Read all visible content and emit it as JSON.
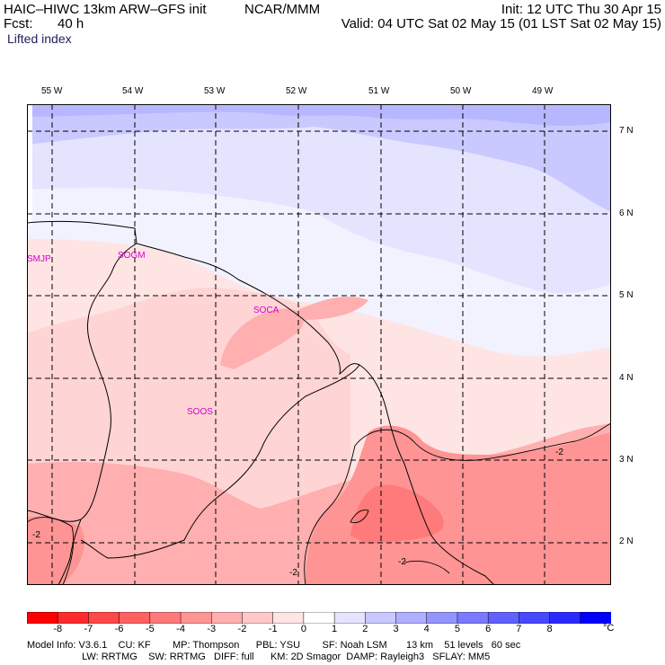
{
  "header": {
    "title": "HAIC–HIWC 13km ARW–GFS init",
    "org": "NCAR/MMM",
    "fcst_label": "Fcst:",
    "fcst_value": "40 h",
    "init": "Init: 12 UTC Thu 30 Apr 15",
    "valid": "Valid: 04 UTC Sat 02 May 15 (01 LST Sat 02 May 15)",
    "field": "Lifted index"
  },
  "map": {
    "lon_labels": [
      "55 W",
      "54 W",
      "53 W",
      "52 W",
      "51 W",
      "50 W",
      "49 W"
    ],
    "lat_labels": [
      "7 N",
      "6 N",
      "5 N",
      "4 N",
      "3 N",
      "2 N"
    ],
    "stations": [
      "SMJP",
      "SOGM",
      "SOCA",
      "SOOS"
    ],
    "contour_labels": [
      "-2",
      "-2",
      "-2",
      "-2"
    ]
  },
  "colorbar": {
    "labels": [
      "-8",
      "-7",
      "-6",
      "-5",
      "-4",
      "-3",
      "-2",
      "-1",
      "0",
      "1",
      "2",
      "3",
      "4",
      "5",
      "6",
      "7",
      "8"
    ],
    "unit": "°C",
    "colors": [
      "#ff0000",
      "#ff2a2a",
      "#ff4848",
      "#ff6161",
      "#ff7a7a",
      "#ff9494",
      "#ffafaf",
      "#ffc9c9",
      "#ffe4e4",
      "#ffffff",
      "#e4e4ff",
      "#c9c9ff",
      "#afafff",
      "#9494ff",
      "#7a7aff",
      "#6161ff",
      "#4848ff",
      "#2a2aff",
      "#0000ff"
    ]
  },
  "footer": {
    "line1": "Model Info: V3.6.1    CU: KF        MP: Thompson      PBL: YSU        SF: Noah LSM       13 km    51 levels   60 sec",
    "line2": "                    LW: RRTMG    SW: RRTMG   DIFF: full      KM: 2D Smagor  DAMP: Rayleigh3   SFLAY: MM5"
  }
}
